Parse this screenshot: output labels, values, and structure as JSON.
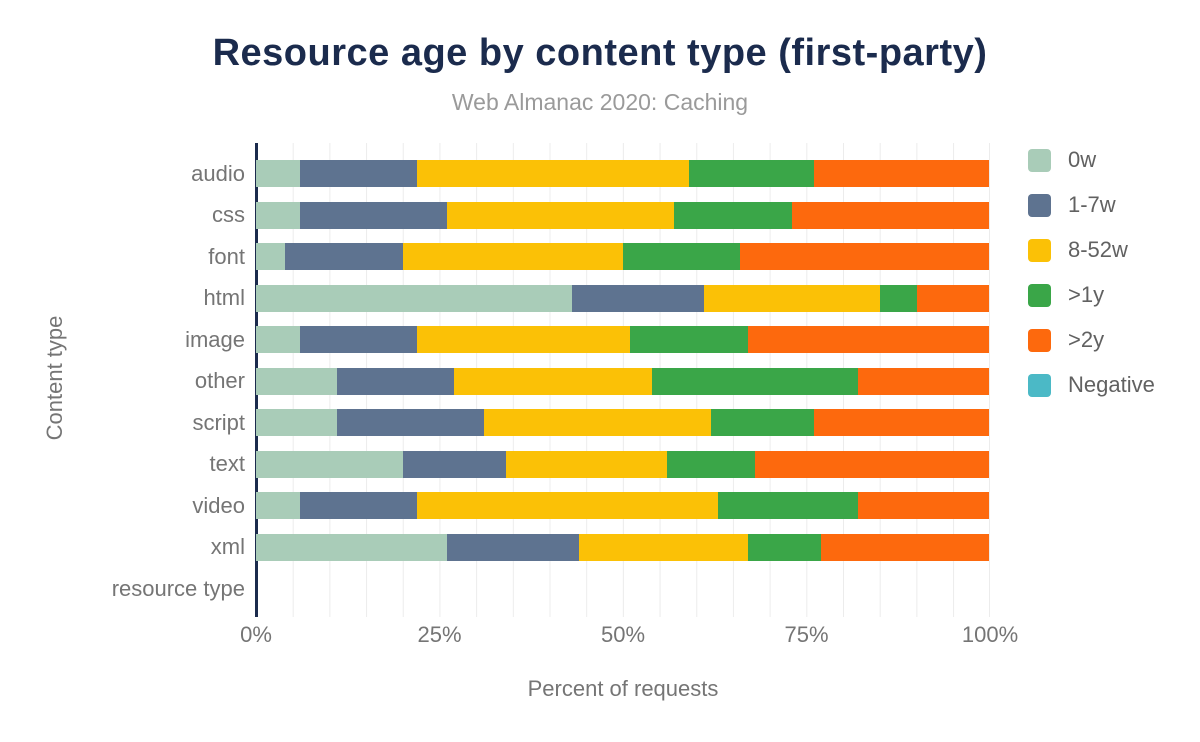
{
  "title": "Resource age by content type (first-party)",
  "subtitle": "Web Almanac 2020: Caching",
  "colors": {
    "title_text": "#1b2b4d",
    "subtitle_text": "#9a9a9a",
    "axis_text": "#757575",
    "legend_text": "#616161",
    "axis_line": "#1b2b4d",
    "gridline": "#ececec",
    "background": "#ffffff"
  },
  "chart_data": {
    "type": "bar",
    "orientation": "horizontal",
    "stacked": true,
    "title": "Resource age by content type (first-party)",
    "subtitle": "Web Almanac 2020: Caching",
    "xlabel": "Percent of requests",
    "ylabel": "Content type",
    "xlim": [
      0,
      100
    ],
    "x_ticks": [
      "0%",
      "25%",
      "50%",
      "75%",
      "100%"
    ],
    "x_tick_values": [
      0,
      25,
      50,
      75,
      100
    ],
    "grid": "vertical minor gridlines every 5%",
    "legend_position": "right",
    "categories": [
      "audio",
      "css",
      "font",
      "html",
      "image",
      "other",
      "script",
      "text",
      "video",
      "xml",
      "resource type"
    ],
    "series": [
      {
        "name": "0w",
        "color": "#a9ccb8",
        "values": [
          6,
          6,
          4,
          43,
          6,
          11,
          11,
          20,
          6,
          26,
          0
        ]
      },
      {
        "name": "1-7w",
        "color": "#5e7390",
        "values": [
          16,
          20,
          16,
          18,
          16,
          16,
          20,
          14,
          16,
          18,
          0
        ]
      },
      {
        "name": "8-52w",
        "color": "#fbc106",
        "values": [
          37,
          31,
          30,
          24,
          29,
          27,
          31,
          22,
          41,
          23,
          0
        ]
      },
      {
        "name": ">1y",
        "color": "#3aa648",
        "values": [
          17,
          16,
          16,
          5,
          16,
          28,
          14,
          12,
          19,
          10,
          0
        ]
      },
      {
        "name": ">2y",
        "color": "#fd690d",
        "values": [
          24,
          27,
          34,
          10,
          33,
          18,
          24,
          32,
          18,
          23,
          0
        ]
      },
      {
        "name": "Negative",
        "color": "#4bb9c6",
        "values": [
          0,
          0,
          0,
          0,
          0,
          0,
          0,
          0,
          0,
          0,
          0
        ]
      }
    ]
  }
}
